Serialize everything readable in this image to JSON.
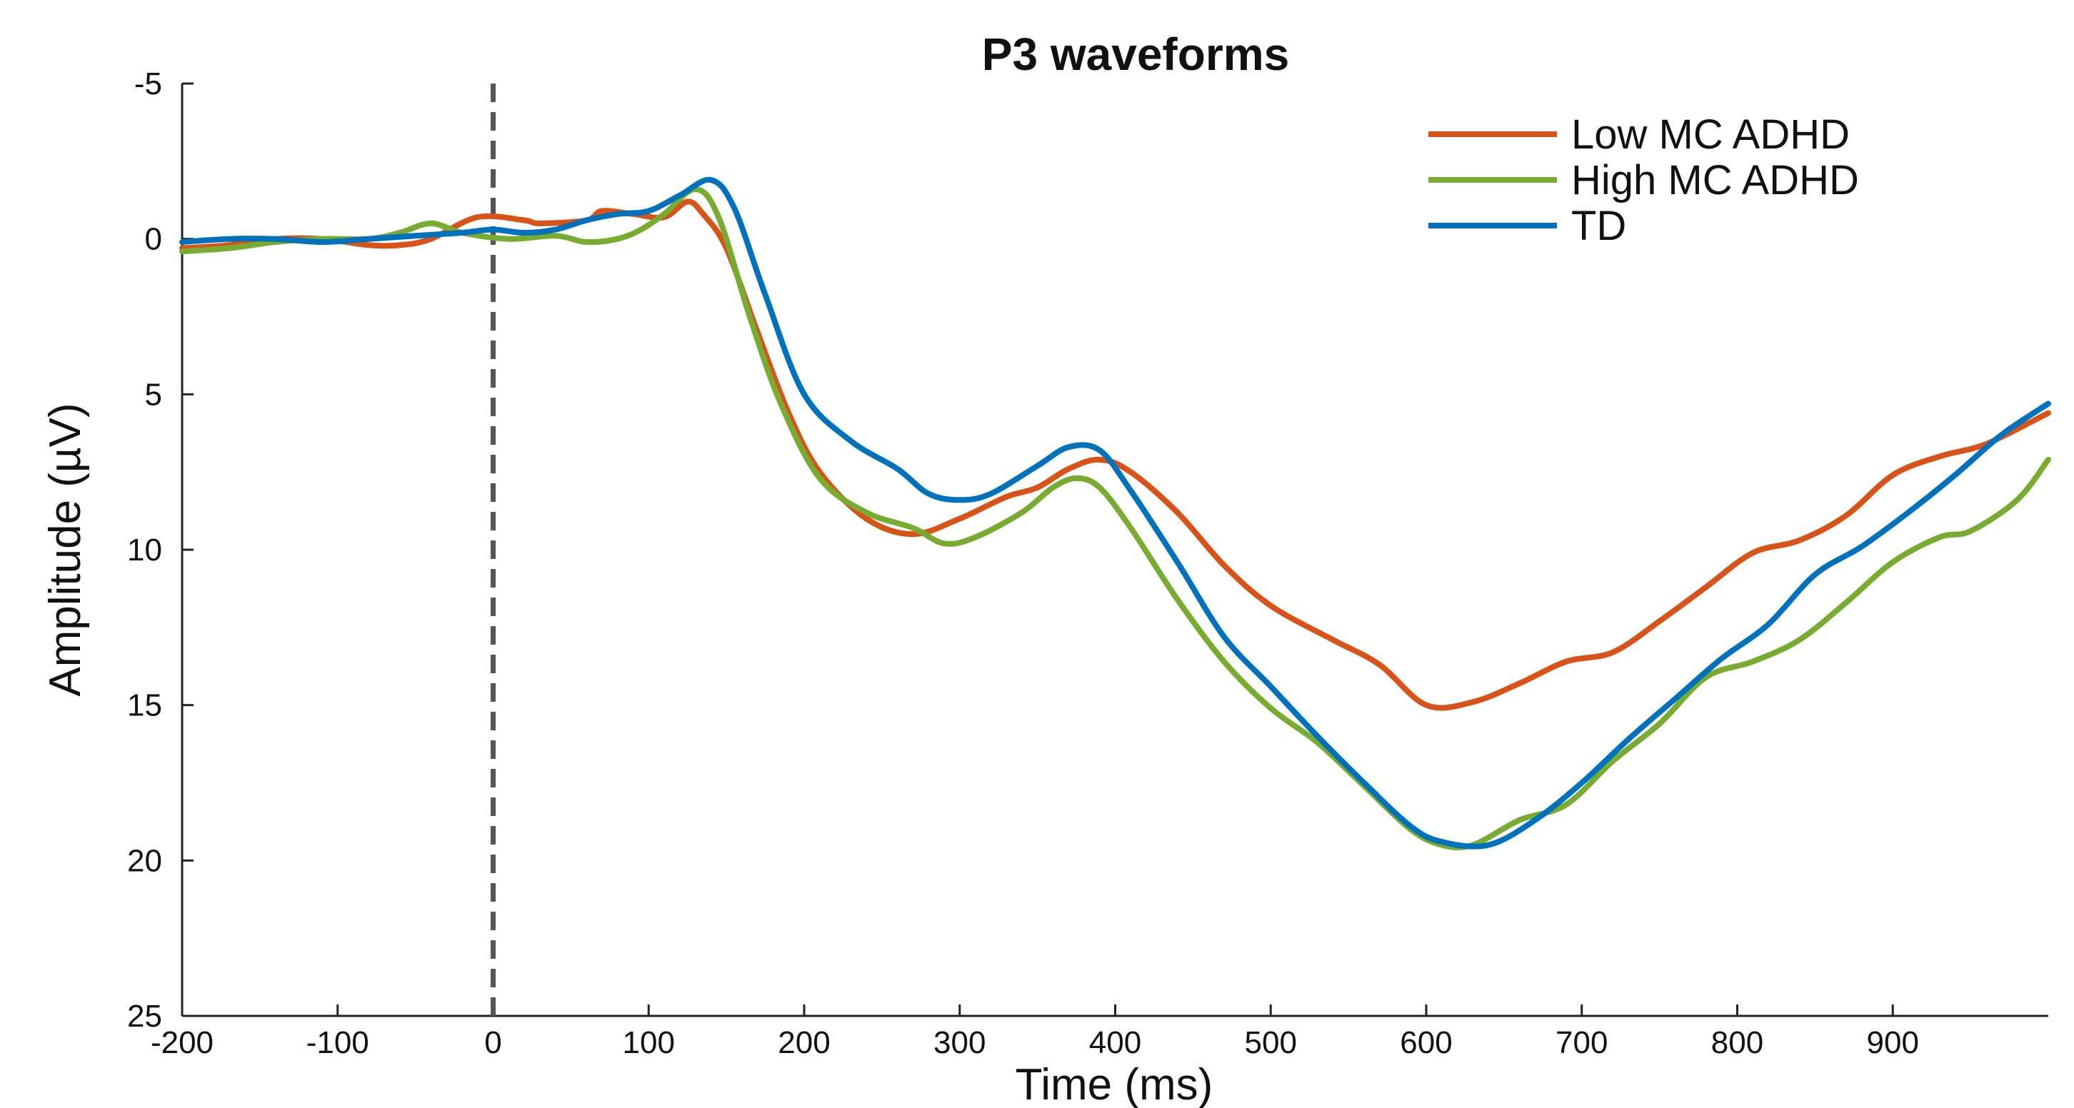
{
  "chart_data": {
    "type": "line",
    "title": "P3 waveforms",
    "xlabel": "Time (ms)",
    "ylabel": "Amplitude (µV)",
    "xlim": [
      -200,
      1000
    ],
    "ylim": [
      -5,
      25
    ],
    "y_reversed": true,
    "xticks": [
      -200,
      -100,
      0,
      100,
      200,
      300,
      400,
      500,
      600,
      700,
      800,
      900
    ],
    "yticks": [
      -5,
      0,
      5,
      10,
      15,
      20,
      25
    ],
    "grid": false,
    "legend_position": "top-right",
    "reference_line": {
      "x": 0,
      "style": "dashed",
      "color": "#555555"
    },
    "series": [
      {
        "name": "Low MC ADHD",
        "color": "#D95319",
        "points": [
          [
            -200,
            0.3
          ],
          [
            -170,
            0.2
          ],
          [
            -140,
            0.0
          ],
          [
            -110,
            0.0
          ],
          [
            -80,
            0.2
          ],
          [
            -60,
            0.2
          ],
          [
            -40,
            0.0
          ],
          [
            -10,
            -0.7
          ],
          [
            20,
            -0.6
          ],
          [
            30,
            -0.5
          ],
          [
            60,
            -0.6
          ],
          [
            70,
            -0.9
          ],
          [
            90,
            -0.8
          ],
          [
            110,
            -0.7
          ],
          [
            125,
            -1.2
          ],
          [
            135,
            -0.8
          ],
          [
            150,
            0.3
          ],
          [
            170,
            3.0
          ],
          [
            190,
            5.6
          ],
          [
            210,
            7.5
          ],
          [
            240,
            9.0
          ],
          [
            270,
            9.5
          ],
          [
            300,
            9.0
          ],
          [
            330,
            8.3
          ],
          [
            350,
            8.0
          ],
          [
            370,
            7.4
          ],
          [
            390,
            7.1
          ],
          [
            410,
            7.5
          ],
          [
            440,
            8.8
          ],
          [
            470,
            10.5
          ],
          [
            500,
            11.8
          ],
          [
            540,
            12.9
          ],
          [
            570,
            13.7
          ],
          [
            600,
            15.0
          ],
          [
            630,
            14.9
          ],
          [
            660,
            14.3
          ],
          [
            690,
            13.6
          ],
          [
            720,
            13.3
          ],
          [
            750,
            12.3
          ],
          [
            780,
            11.2
          ],
          [
            810,
            10.1
          ],
          [
            840,
            9.7
          ],
          [
            870,
            8.9
          ],
          [
            900,
            7.6
          ],
          [
            930,
            7.0
          ],
          [
            960,
            6.6
          ],
          [
            1000,
            5.6
          ]
        ]
      },
      {
        "name": "High MC ADHD",
        "color": "#77AC30",
        "points": [
          [
            -200,
            0.4
          ],
          [
            -170,
            0.3
          ],
          [
            -140,
            0.1
          ],
          [
            -110,
            0.0
          ],
          [
            -80,
            0.0
          ],
          [
            -60,
            -0.2
          ],
          [
            -40,
            -0.5
          ],
          [
            -20,
            -0.2
          ],
          [
            10,
            0.0
          ],
          [
            40,
            -0.1
          ],
          [
            60,
            0.1
          ],
          [
            80,
            0.0
          ],
          [
            95,
            -0.3
          ],
          [
            110,
            -0.8
          ],
          [
            130,
            -1.6
          ],
          [
            145,
            -0.7
          ],
          [
            165,
            2.5
          ],
          [
            185,
            5.3
          ],
          [
            210,
            7.7
          ],
          [
            240,
            8.8
          ],
          [
            270,
            9.3
          ],
          [
            290,
            9.8
          ],
          [
            310,
            9.6
          ],
          [
            340,
            8.8
          ],
          [
            360,
            8.0
          ],
          [
            375,
            7.7
          ],
          [
            390,
            8.0
          ],
          [
            410,
            9.3
          ],
          [
            440,
            11.6
          ],
          [
            470,
            13.6
          ],
          [
            500,
            15.1
          ],
          [
            530,
            16.2
          ],
          [
            560,
            17.6
          ],
          [
            590,
            19.0
          ],
          [
            610,
            19.5
          ],
          [
            630,
            19.5
          ],
          [
            660,
            18.7
          ],
          [
            690,
            18.2
          ],
          [
            720,
            16.8
          ],
          [
            750,
            15.6
          ],
          [
            780,
            14.1
          ],
          [
            810,
            13.6
          ],
          [
            840,
            12.9
          ],
          [
            870,
            11.7
          ],
          [
            900,
            10.4
          ],
          [
            930,
            9.6
          ],
          [
            950,
            9.4
          ],
          [
            980,
            8.4
          ],
          [
            1000,
            7.1
          ]
        ]
      },
      {
        "name": "TD",
        "color": "#0072BD",
        "points": [
          [
            -200,
            0.1
          ],
          [
            -170,
            0.0
          ],
          [
            -140,
            0.0
          ],
          [
            -110,
            0.1
          ],
          [
            -80,
            0.0
          ],
          [
            -50,
            -0.1
          ],
          [
            -20,
            -0.2
          ],
          [
            0,
            -0.3
          ],
          [
            20,
            -0.2
          ],
          [
            40,
            -0.3
          ],
          [
            60,
            -0.6
          ],
          [
            80,
            -0.8
          ],
          [
            100,
            -0.9
          ],
          [
            120,
            -1.4
          ],
          [
            140,
            -1.9
          ],
          [
            155,
            -1.0
          ],
          [
            175,
            1.8
          ],
          [
            200,
            5.0
          ],
          [
            230,
            6.5
          ],
          [
            260,
            7.4
          ],
          [
            280,
            8.2
          ],
          [
            300,
            8.4
          ],
          [
            320,
            8.2
          ],
          [
            350,
            7.3
          ],
          [
            370,
            6.7
          ],
          [
            390,
            6.8
          ],
          [
            410,
            8.1
          ],
          [
            440,
            10.4
          ],
          [
            470,
            12.8
          ],
          [
            500,
            14.4
          ],
          [
            530,
            16.0
          ],
          [
            560,
            17.5
          ],
          [
            590,
            18.9
          ],
          [
            610,
            19.4
          ],
          [
            640,
            19.5
          ],
          [
            670,
            18.7
          ],
          [
            700,
            17.5
          ],
          [
            730,
            16.1
          ],
          [
            760,
            14.8
          ],
          [
            790,
            13.5
          ],
          [
            820,
            12.4
          ],
          [
            850,
            10.8
          ],
          [
            880,
            9.9
          ],
          [
            910,
            8.8
          ],
          [
            940,
            7.6
          ],
          [
            970,
            6.3
          ],
          [
            1000,
            5.3
          ]
        ]
      }
    ]
  }
}
